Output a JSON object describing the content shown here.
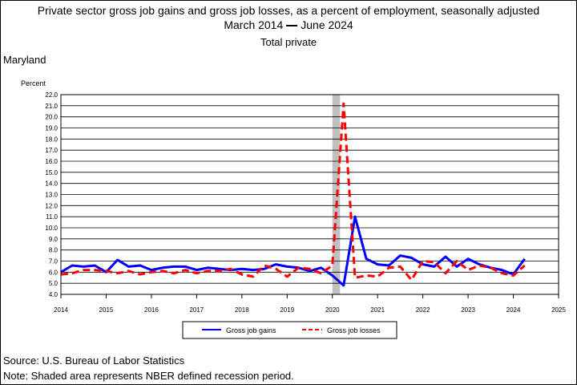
{
  "header": {
    "title": "Private sector gross job gains and gross job losses, as a percent of employment, seasonally adjusted",
    "subtitle_start": "March 2014",
    "subtitle_end": "June 2024",
    "series_label": "Total private",
    "state": "Maryland"
  },
  "footer": {
    "source": "Source: U.S. Bureau of Labor Statistics",
    "note": "Note: Shaded area represents NBER defined recession period."
  },
  "chart_data": {
    "type": "line",
    "ylabel": "Percent",
    "ylim": [
      4.0,
      22.0
    ],
    "xlim": [
      2014,
      2025
    ],
    "grid": true,
    "legend_position": "bottom-center",
    "y_ticks": [
      "4.0",
      "5.0",
      "6.0",
      "7.0",
      "8.0",
      "9.0",
      "10.0",
      "11.0",
      "12.0",
      "13.0",
      "14.0",
      "15.0",
      "16.0",
      "17.0",
      "18.0",
      "19.0",
      "20.0",
      "21.0",
      "22.0"
    ],
    "x_ticks": [
      "2014",
      "2015",
      "2016",
      "2017",
      "2018",
      "2019",
      "2020",
      "2021",
      "2022",
      "2023",
      "2024",
      "2025"
    ],
    "recession": {
      "start": 2020.0,
      "end": 2020.17,
      "color": "#c0c0c0"
    },
    "x": [
      2014.0,
      2014.25,
      2014.5,
      2014.75,
      2015.0,
      2015.25,
      2015.5,
      2015.75,
      2016.0,
      2016.25,
      2016.5,
      2016.75,
      2017.0,
      2017.25,
      2017.5,
      2017.75,
      2018.0,
      2018.25,
      2018.5,
      2018.75,
      2019.0,
      2019.25,
      2019.5,
      2019.75,
      2020.0,
      2020.25,
      2020.5,
      2020.75,
      2021.0,
      2021.25,
      2021.5,
      2021.75,
      2022.0,
      2022.25,
      2022.5,
      2022.75,
      2023.0,
      2023.25,
      2023.5,
      2023.75,
      2024.0,
      2024.25
    ],
    "series": [
      {
        "name": "Gross job gains",
        "color": "#0000ff",
        "style": "solid",
        "values": [
          6.0,
          6.6,
          6.5,
          6.6,
          6.0,
          7.1,
          6.5,
          6.6,
          6.2,
          6.4,
          6.5,
          6.5,
          6.2,
          6.4,
          6.3,
          6.2,
          6.3,
          6.2,
          6.3,
          6.7,
          6.5,
          6.4,
          6.1,
          6.4,
          5.7,
          4.8,
          11.0,
          7.2,
          6.7,
          6.6,
          7.5,
          7.3,
          6.7,
          6.5,
          7.4,
          6.5,
          7.2,
          6.7,
          6.4,
          6.2,
          5.8,
          7.2
        ]
      },
      {
        "name": "Gross job losses",
        "color": "#ff0000",
        "style": "dashed",
        "values": [
          5.8,
          5.9,
          6.2,
          6.2,
          6.1,
          5.9,
          6.1,
          5.8,
          6.0,
          6.1,
          5.9,
          6.2,
          5.9,
          6.1,
          6.1,
          6.3,
          5.8,
          5.6,
          6.6,
          6.3,
          5.6,
          6.4,
          6.3,
          5.9,
          6.6,
          21.2,
          5.5,
          5.7,
          5.6,
          6.4,
          6.5,
          5.3,
          7.0,
          6.9,
          5.9,
          7.0,
          6.2,
          6.6,
          6.4,
          5.9,
          5.7,
          6.6
        ]
      }
    ]
  }
}
